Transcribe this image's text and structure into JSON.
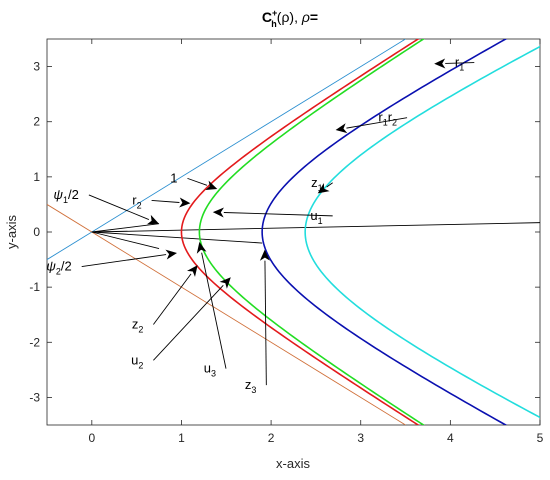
{
  "chart_data": {
    "type": "line",
    "title": {
      "c": "C",
      "h": "h",
      "plus": "+",
      "arg": "(ρ), ",
      "rho": "ρ",
      "eq": "="
    },
    "xlabel": "x-axis",
    "ylabel": "y-axis",
    "xlim": [
      -0.5,
      5
    ],
    "ylim": [
      -3.5,
      3.5
    ],
    "xticks": [
      "0",
      "1",
      "2",
      "3",
      "4",
      "5"
    ],
    "xtick_values": [
      0,
      1,
      2,
      3,
      4,
      5
    ],
    "yticks": [
      "-3",
      "-2",
      "-1",
      "0",
      "1",
      "2",
      "3"
    ],
    "ytick_values": [
      -3,
      -2,
      -1,
      0,
      1,
      2,
      3
    ],
    "grid": false,
    "hyperbolas": [
      {
        "label": "1",
        "color": "#e31a1c",
        "a": 1.0,
        "b": 1.0
      },
      {
        "label": "r_2",
        "color": "#22dd22",
        "a": 1.2,
        "b": 1.2
      },
      {
        "label": "r_1 r_2",
        "color": "#0a10b0",
        "a": 1.9,
        "b": 1.58
      },
      {
        "label": "r_1",
        "color": "#22dddd",
        "a": 2.38,
        "b": 1.82
      }
    ],
    "asymptotes": [
      {
        "color": "#2b8fd0",
        "slope": 1.0,
        "points": [
          [
            -0.5,
            -0.5
          ],
          [
            3.5,
            3.5
          ]
        ]
      },
      {
        "color": "#d0703a",
        "slope": -1.0,
        "points": [
          [
            -0.5,
            0.5
          ],
          [
            3.5,
            -3.5
          ]
        ]
      }
    ],
    "rays": [
      {
        "color": "#000000",
        "to": [
          5,
          0.17
        ]
      },
      {
        "color": "#000000",
        "to": [
          0.75,
          0.15
        ]
      },
      {
        "color": "#000000",
        "to": [
          0.75,
          -0.3
        ]
      },
      {
        "color": "#000000",
        "to": [
          1.9,
          -0.2
        ]
      }
    ],
    "annotations": [
      {
        "name": "label-1",
        "text": "1",
        "sub": "",
        "text2": "",
        "sub2": "",
        "at": [
          1.0,
          0.9
        ],
        "arrow_to": [
          1.4,
          0.78
        ]
      },
      {
        "name": "label-r2",
        "text": "r",
        "sub": "2",
        "text2": "",
        "sub2": "",
        "at": [
          0.6,
          0.5
        ],
        "arrow_to": [
          1.1,
          0.52
        ]
      },
      {
        "name": "label-psi1",
        "text": "ψ",
        "sub": "1",
        "text2": "/2",
        "sub2": "",
        "at": [
          -0.1,
          0.6
        ],
        "arrow_to": [
          0.75,
          0.15
        ]
      },
      {
        "name": "label-psi2",
        "text": "ψ",
        "sub": "2",
        "text2": "/2",
        "sub2": "",
        "at": [
          -0.18,
          -0.7
        ],
        "arrow_to": [
          0.95,
          -0.38
        ]
      },
      {
        "name": "label-z1",
        "text": "z",
        "sub": "1",
        "text2": "",
        "sub2": "",
        "at": [
          2.62,
          0.82
        ],
        "arrow_to": [
          2.52,
          0.7
        ]
      },
      {
        "name": "label-u1",
        "text": "u",
        "sub": "1",
        "text2": "",
        "sub2": "",
        "at": [
          2.62,
          0.22
        ],
        "arrow_to": [
          1.35,
          0.36
        ]
      },
      {
        "name": "label-r1r2",
        "text": "r",
        "sub": "1",
        "text2": "r",
        "sub2": "2",
        "at": [
          3.45,
          2.0
        ],
        "arrow_to": [
          2.72,
          1.85
        ]
      },
      {
        "name": "label-r1",
        "text": "r",
        "sub": "1",
        "text2": "",
        "sub2": "",
        "at": [
          4.2,
          3.0
        ],
        "arrow_to": [
          3.82,
          3.05
        ]
      },
      {
        "name": "label-z2",
        "text": "z",
        "sub": "2",
        "text2": "",
        "sub2": "",
        "at": [
          0.62,
          -1.75
        ],
        "arrow_to": [
          1.18,
          -0.6
        ]
      },
      {
        "name": "label-u2",
        "text": "u",
        "sub": "2",
        "text2": "",
        "sub2": "",
        "at": [
          0.62,
          -2.4
        ],
        "arrow_to": [
          1.55,
          -0.82
        ]
      },
      {
        "name": "label-u3",
        "text": "u",
        "sub": "3",
        "text2": "",
        "sub2": "",
        "at": [
          1.43,
          -2.55
        ],
        "arrow_to": [
          1.2,
          -0.18
        ]
      },
      {
        "name": "label-z3",
        "text": "z",
        "sub": "3",
        "text2": "",
        "sub2": "",
        "at": [
          1.88,
          -2.85
        ],
        "arrow_to": [
          1.93,
          -0.32
        ]
      }
    ]
  }
}
